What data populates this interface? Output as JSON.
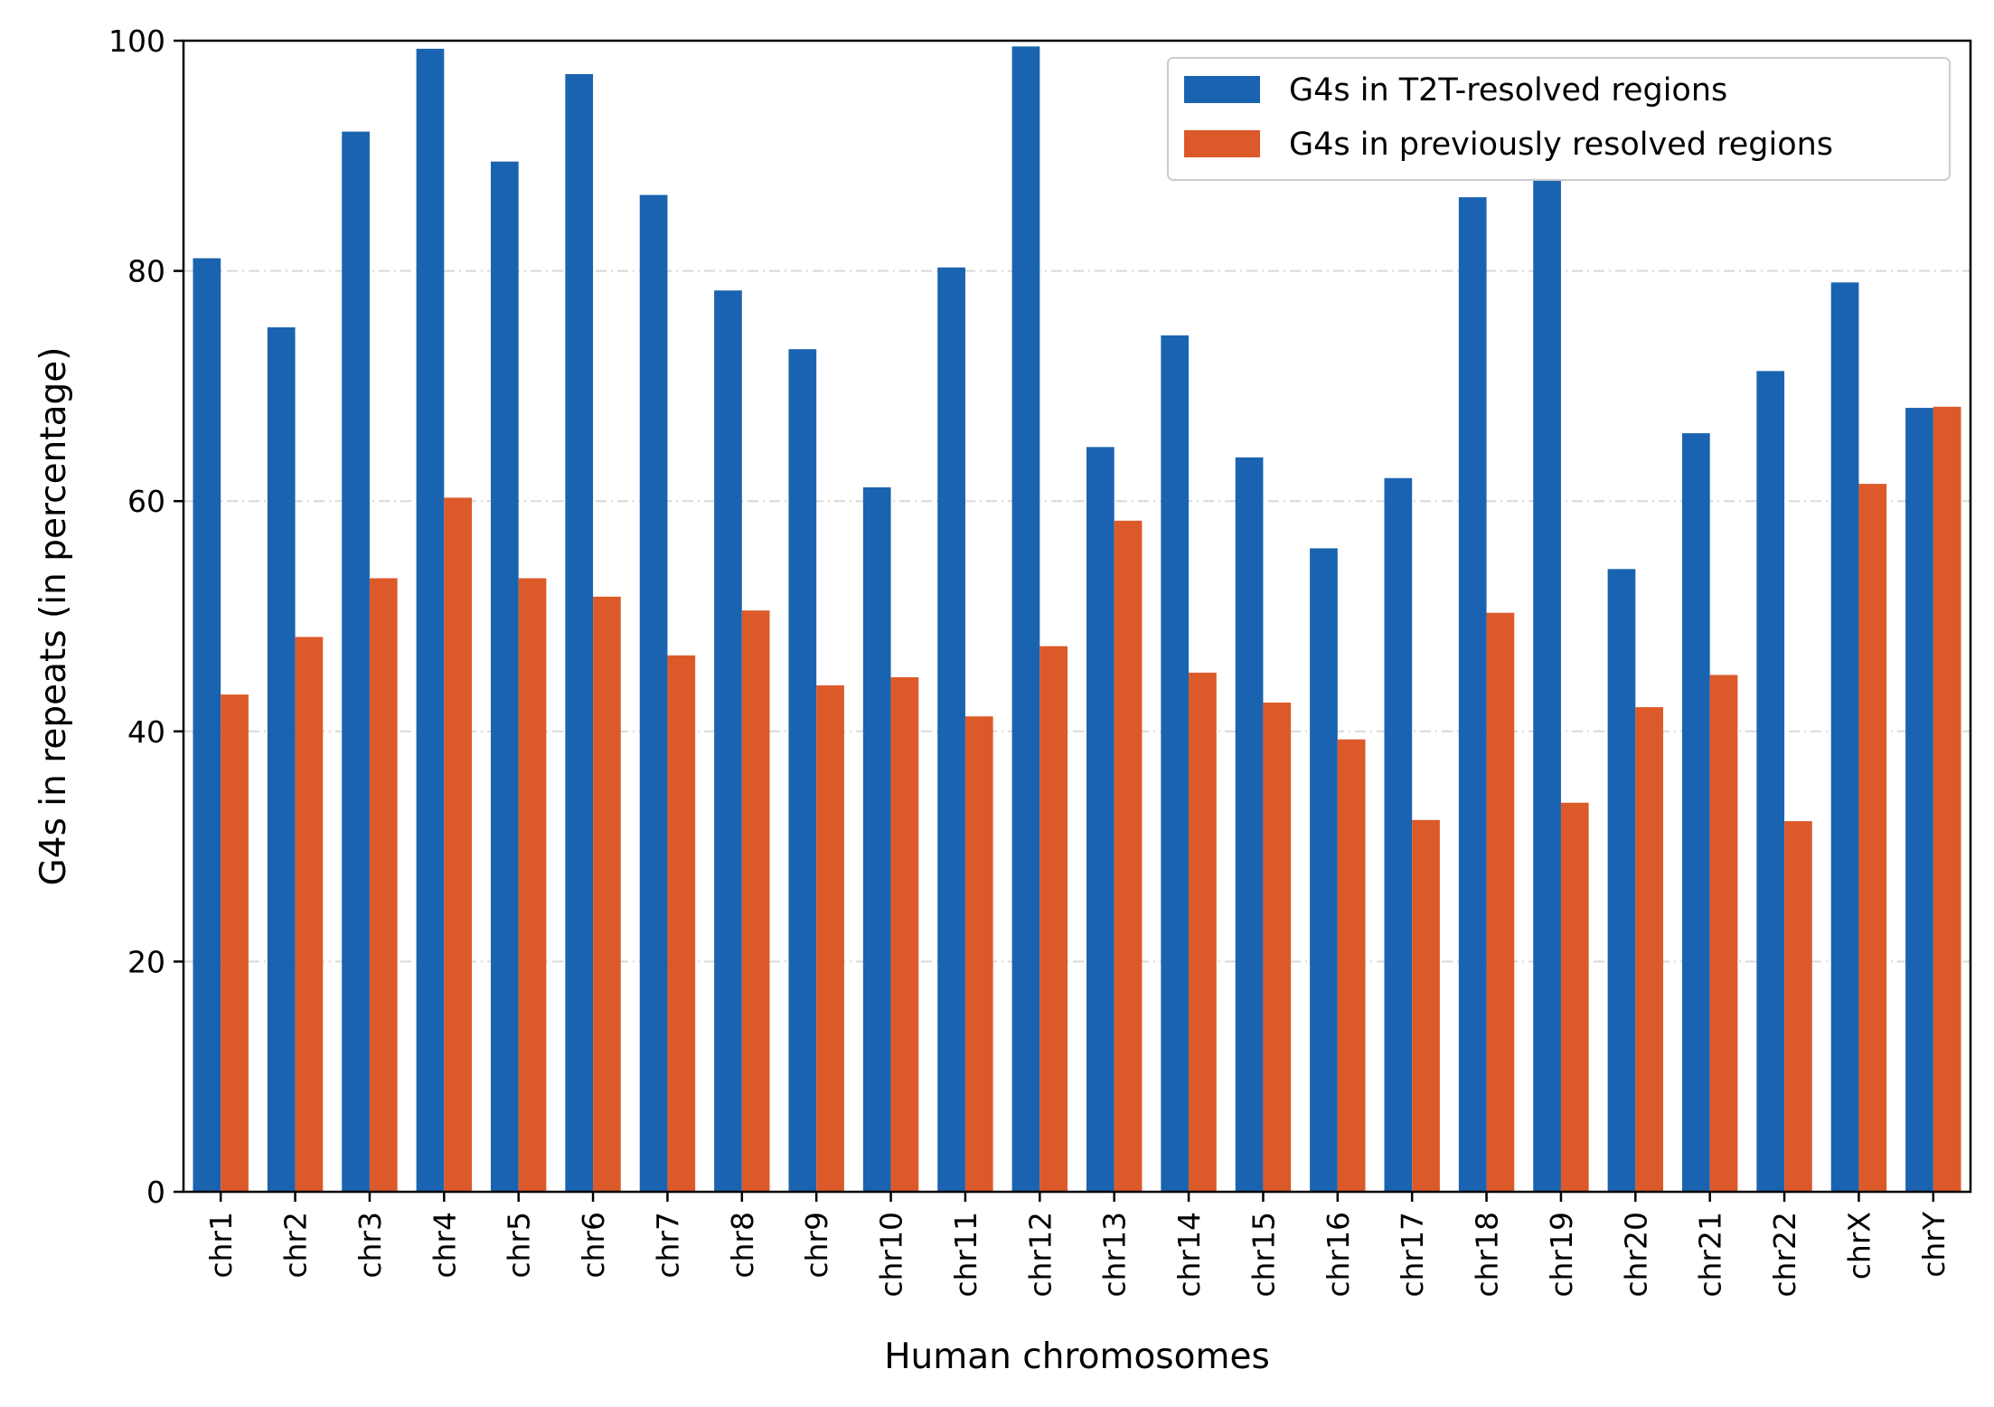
{
  "chart_data": {
    "type": "bar",
    "xlabel": "Human chromosomes",
    "ylabel": "G4s in repeats (in percentage)",
    "ylim": [
      0,
      100
    ],
    "yticks": [
      "0",
      "20",
      "40",
      "60",
      "80",
      "100"
    ],
    "grid": "horizontal dash-dot, light gray",
    "legend_position": "top-right",
    "categories": [
      "chr1",
      "chr2",
      "chr3",
      "chr4",
      "chr5",
      "chr6",
      "chr7",
      "chr8",
      "chr9",
      "chr10",
      "chr11",
      "chr12",
      "chr13",
      "chr14",
      "chr15",
      "chr16",
      "chr17",
      "chr18",
      "chr19",
      "chr20",
      "chr21",
      "chr22",
      "chrX",
      "chrY"
    ],
    "series": [
      {
        "name": "G4s in T2T-resolved regions",
        "color": "#1a63b0",
        "values": [
          81.1,
          75.1,
          92.1,
          99.3,
          89.5,
          97.1,
          86.6,
          78.3,
          73.2,
          61.2,
          80.3,
          99.5,
          64.7,
          74.4,
          63.8,
          55.9,
          62.0,
          86.4,
          88.0,
          54.1,
          65.9,
          71.3,
          79.0,
          68.1
        ]
      },
      {
        "name": "G4s in previously resolved regions",
        "color": "#dc5a2a",
        "values": [
          43.2,
          48.2,
          53.3,
          60.3,
          53.3,
          51.7,
          46.6,
          50.5,
          44.0,
          44.7,
          41.3,
          47.4,
          58.3,
          45.1,
          42.5,
          39.3,
          32.3,
          50.3,
          33.8,
          42.1,
          44.9,
          32.2,
          61.5,
          68.2
        ]
      }
    ]
  }
}
